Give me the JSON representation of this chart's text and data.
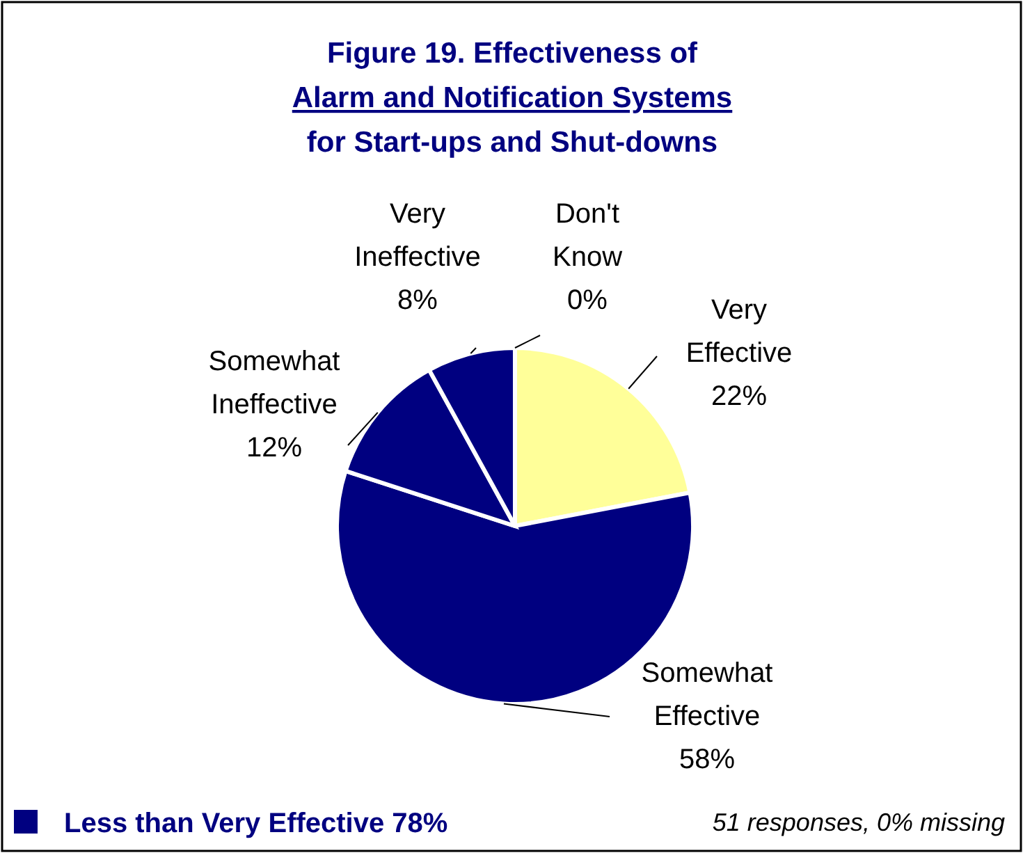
{
  "chart_data": {
    "type": "pie",
    "title": "Figure 19.  Effectiveness of\nAlarm and Notification Systems\nfor Start-ups and Shut-downs",
    "categories": [
      "Don't Know",
      "Very Effective",
      "Somewhat Effective",
      "Somewhat Ineffective",
      "Very Ineffective"
    ],
    "values": [
      0,
      22,
      58,
      12,
      8
    ],
    "value_labels": [
      "0%",
      "22%",
      "58%",
      "12%",
      "8%"
    ],
    "colors": [
      "#000080",
      "#ffff99",
      "#000080",
      "#000080",
      "#000080"
    ],
    "annotations": [
      "Less than Very Effective 78%",
      "51 responses, 0% missing"
    ]
  }
}
